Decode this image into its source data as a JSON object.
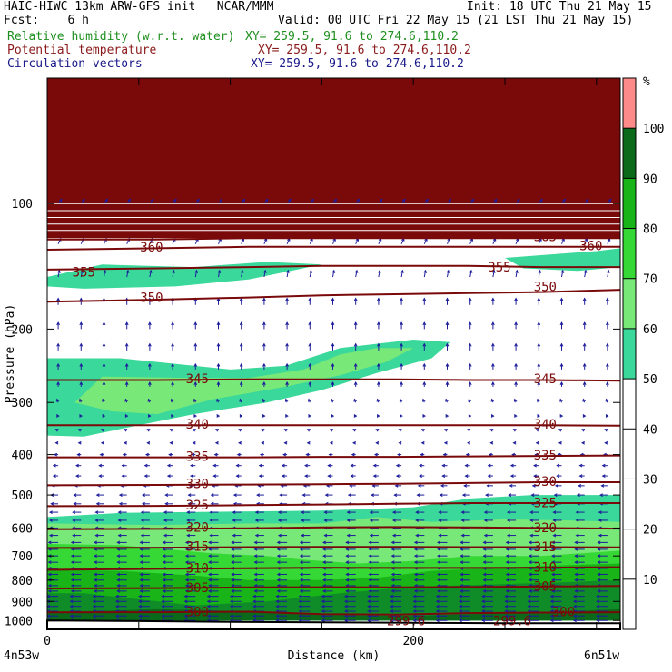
{
  "header": {
    "line1_left": "HAIC-HIWC 13km ARW-GFS init   NCAR/MMM",
    "line1_right": "Init: 18 UTC Thu 21 May 15",
    "line2_left": "Fcst:    6 h",
    "line2_right": "Valid: 00 UTC Fri 22 May 15 (21 LST Thu 21 May 15)",
    "fields": [
      {
        "name": "Relative humidity (w.r.t. water)",
        "xy": "XY= 259.5, 91.6 to 274.6,110.2",
        "color": "#1f8f1f"
      },
      {
        "name": "Potential temperature",
        "xy": "XY= 259.5, 91.6 to 274.6,110.2",
        "color": "#8b1a1a"
      },
      {
        "name": "Circulation vectors",
        "xy": "XY= 259.5, 91.6 to 274.6,110.2",
        "color": "#1a1a8b"
      }
    ]
  },
  "colors": {
    "theta": "#7a0a0a",
    "vectors": "#1c1c9c",
    "rh_levels": [
      "#ffffff",
      "#ffffff",
      "#ffffff",
      "#ffffff",
      "#ffffff",
      "#3ad89a",
      "#78e878",
      "#35d835",
      "#18b418",
      "#0f8c28",
      "#0a6a1a",
      "#ff8a8a"
    ]
  },
  "chart_data": {
    "type": "cross-section",
    "xlabel": "Distance (km)",
    "ylabel": "Pressure (hPa)",
    "xlim": [
      0,
      313
    ],
    "ylim": [
      1050,
      50
    ],
    "y_scale": "log",
    "x_ticks": [
      0,
      200
    ],
    "y_ticks": [
      100,
      200,
      300,
      400,
      500,
      600,
      700,
      800,
      900,
      1000
    ],
    "x_endpoint_labels": [
      "4n53w",
      "6n51w"
    ],
    "colorbar": {
      "unit": "%",
      "ticks": [
        10,
        20,
        30,
        40,
        50,
        60,
        70,
        80,
        90,
        100
      ],
      "bands": [
        {
          "from": 0,
          "to": 50,
          "color": "#ffffff"
        },
        {
          "from": 50,
          "to": 60,
          "color": "#3ad89a"
        },
        {
          "from": 60,
          "to": 70,
          "color": "#78e878"
        },
        {
          "from": 70,
          "to": 80,
          "color": "#35d835"
        },
        {
          "from": 80,
          "to": 90,
          "color": "#18b418"
        },
        {
          "from": 90,
          "to": 100,
          "color": "#0a6a1a"
        },
        {
          "from": 100,
          "to": 110,
          "color": "#ff8a8a"
        }
      ]
    },
    "theta_contours": [
      {
        "label": "300",
        "x": [
          0,
          60,
          110,
          150,
          190,
          230,
          270,
          313
        ],
        "p": [
          956,
          955,
          952,
          965,
          968,
          960,
          957,
          955
        ]
      },
      {
        "label": "305",
        "x": [
          0,
          60,
          110,
          150,
          190,
          230,
          270,
          313
        ],
        "p": [
          838,
          836,
          833,
          832,
          833,
          831,
          829,
          826
        ]
      },
      {
        "label": "310",
        "x": [
          0,
          60,
          110,
          150,
          190,
          230,
          270,
          313
        ],
        "p": [
          756,
          752,
          749,
          747,
          748,
          748,
          747,
          745
        ]
      },
      {
        "label": "315",
        "x": [
          0,
          60,
          110,
          150,
          190,
          230,
          270,
          313
        ],
        "p": [
          670,
          669,
          667,
          666,
          666,
          667,
          667,
          668
        ]
      },
      {
        "label": "320",
        "x": [
          0,
          60,
          110,
          150,
          190,
          230,
          270,
          313
        ],
        "p": [
          604,
          603,
          601,
          598,
          597,
          598,
          600,
          602
        ]
      },
      {
        "label": "325",
        "x": [
          0,
          60,
          110,
          150,
          190,
          230,
          270,
          313
        ],
        "p": [
          532,
          531,
          529,
          527,
          525,
          523,
          523,
          523
        ]
      },
      {
        "label": "330",
        "x": [
          0,
          60,
          110,
          150,
          190,
          230,
          270,
          313
        ],
        "p": [
          474,
          473,
          472,
          471,
          470,
          468,
          466,
          466
        ]
      },
      {
        "label": "335",
        "x": [
          0,
          60,
          110,
          150,
          190,
          230,
          270,
          313
        ],
        "p": [
          406,
          406,
          406,
          405,
          405,
          404,
          403,
          402
        ]
      },
      {
        "label": "340",
        "x": [
          0,
          60,
          110,
          150,
          190,
          230,
          270,
          313
        ],
        "p": [
          340,
          340,
          340,
          340,
          340,
          340,
          340,
          341
        ]
      },
      {
        "label": "345",
        "x": [
          0,
          60,
          110,
          150,
          190,
          230,
          270,
          313
        ],
        "p": [
          265,
          265,
          264,
          264,
          264,
          265,
          265,
          266
        ]
      },
      {
        "label": "350",
        "x": [
          0,
          60,
          110,
          150,
          190,
          230,
          270,
          313
        ],
        "p": [
          172,
          170,
          168,
          166,
          165,
          164,
          163,
          161
        ]
      },
      {
        "label": "355",
        "x": [
          0,
          60,
          110,
          150,
          190,
          230,
          270,
          313
        ],
        "p": [
          144,
          143,
          142,
          141,
          141,
          141,
          142,
          142
        ]
      },
      {
        "label": "360",
        "x": [
          0,
          60,
          110,
          150,
          190,
          230,
          270,
          313
        ],
        "p": [
          129,
          128,
          127,
          127,
          127,
          127,
          127,
          127
        ]
      },
      {
        "label": "365",
        "x": [
          0,
          60,
          110,
          150,
          190,
          230,
          270,
          313
        ],
        "p": [
          122,
          122,
          121,
          121,
          121,
          121,
          121,
          121
        ]
      }
    ],
    "theta_labels": [
      {
        "text": "360",
        "x": 57,
        "p": 127
      },
      {
        "text": "355",
        "x": 20,
        "p": 146
      },
      {
        "text": "350",
        "x": 57,
        "p": 168
      },
      {
        "text": "345",
        "x": 82,
        "p": 263
      },
      {
        "text": "340",
        "x": 82,
        "p": 338
      },
      {
        "text": "335",
        "x": 82,
        "p": 404
      },
      {
        "text": "330",
        "x": 82,
        "p": 470
      },
      {
        "text": "325",
        "x": 82,
        "p": 528
      },
      {
        "text": "320",
        "x": 82,
        "p": 597
      },
      {
        "text": "315",
        "x": 82,
        "p": 664
      },
      {
        "text": "310",
        "x": 82,
        "p": 749
      },
      {
        "text": "305",
        "x": 82,
        "p": 833
      },
      {
        "text": "300",
        "x": 82,
        "p": 952
      },
      {
        "text": "299.6",
        "x": 196,
        "p": 1002
      },
      {
        "text": "365",
        "x": 272,
        "p": 120
      },
      {
        "text": "355",
        "x": 247,
        "p": 142
      },
      {
        "text": "360",
        "x": 297,
        "p": 126
      },
      {
        "text": "350",
        "x": 272,
        "p": 158
      },
      {
        "text": "345",
        "x": 272,
        "p": 263
      },
      {
        "text": "340",
        "x": 272,
        "p": 338
      },
      {
        "text": "335",
        "x": 272,
        "p": 401
      },
      {
        "text": "330",
        "x": 272,
        "p": 464
      },
      {
        "text": "325",
        "x": 272,
        "p": 521
      },
      {
        "text": "320",
        "x": 272,
        "p": 598
      },
      {
        "text": "315",
        "x": 272,
        "p": 665
      },
      {
        "text": "310",
        "x": 272,
        "p": 745
      },
      {
        "text": "305",
        "x": 272,
        "p": 827
      },
      {
        "text": "300",
        "x": 282,
        "p": 952
      },
      {
        "text": "299.6",
        "x": 254,
        "p": 1002
      }
    ],
    "rh_regions": [
      {
        "level": 50,
        "color": "#3ad89a",
        "poly": [
          [
            0,
            1000
          ],
          [
            313,
            1000
          ],
          [
            313,
            500
          ],
          [
            265,
            500
          ],
          [
            230,
            510
          ],
          [
            200,
            535
          ],
          [
            150,
            545
          ],
          [
            100,
            548
          ],
          [
            40,
            552
          ],
          [
            0,
            565
          ]
        ]
      },
      {
        "level": 60,
        "color": "#78e878",
        "poly": [
          [
            0,
            1000
          ],
          [
            313,
            1000
          ],
          [
            313,
            580
          ],
          [
            280,
            575
          ],
          [
            250,
            572
          ],
          [
            210,
            580
          ],
          [
            180,
            565
          ],
          [
            150,
            585
          ],
          [
            110,
            585
          ],
          [
            60,
            590
          ],
          [
            0,
            585
          ]
        ]
      },
      {
        "level": 70,
        "color": "#35d835",
        "poly": [
          [
            0,
            1000
          ],
          [
            313,
            1000
          ],
          [
            313,
            680
          ],
          [
            270,
            700
          ],
          [
            230,
            700
          ],
          [
            200,
            720
          ],
          [
            170,
            730
          ],
          [
            140,
            715
          ],
          [
            120,
            700
          ],
          [
            90,
            690
          ],
          [
            40,
            660
          ],
          [
            0,
            655
          ]
        ]
      },
      {
        "level": 80,
        "color": "#18b418",
        "poly": [
          [
            0,
            1000
          ],
          [
            313,
            1000
          ],
          [
            313,
            730
          ],
          [
            270,
            740
          ],
          [
            210,
            760
          ],
          [
            180,
            790
          ],
          [
            150,
            800
          ],
          [
            110,
            800
          ],
          [
            80,
            780
          ],
          [
            40,
            760
          ],
          [
            0,
            755
          ]
        ]
      },
      {
        "level": 90,
        "color": "#0f8c28",
        "poly": [
          [
            0,
            1000
          ],
          [
            313,
            1000
          ],
          [
            313,
            800
          ],
          [
            280,
            810
          ],
          [
            240,
            820
          ],
          [
            200,
            830
          ],
          [
            160,
            860
          ],
          [
            120,
            900
          ],
          [
            80,
            920
          ],
          [
            20,
            860
          ],
          [
            0,
            860
          ]
        ]
      },
      {
        "level": 100,
        "color": "#0a6a1a",
        "poly": [
          [
            0,
            1000
          ],
          [
            313,
            1000
          ],
          [
            313,
            940
          ],
          [
            250,
            960
          ],
          [
            200,
            975
          ],
          [
            150,
            970
          ],
          [
            110,
            950
          ],
          [
            60,
            940
          ],
          [
            0,
            955
          ]
        ]
      },
      {
        "level": 50,
        "color": "#3ad89a",
        "poly": [
          [
            0,
            235
          ],
          [
            40,
            235
          ],
          [
            100,
            250
          ],
          [
            130,
            245
          ],
          [
            160,
            222
          ],
          [
            200,
            212
          ],
          [
            220,
            215
          ],
          [
            210,
            235
          ],
          [
            180,
            255
          ],
          [
            150,
            280
          ],
          [
            120,
            300
          ],
          [
            80,
            320
          ],
          [
            50,
            340
          ],
          [
            20,
            362
          ],
          [
            0,
            360
          ]
        ]
      },
      {
        "level": 60,
        "color": "#78e878",
        "poly": [
          [
            30,
            260
          ],
          [
            80,
            262
          ],
          [
            110,
            262
          ],
          [
            140,
            250
          ],
          [
            160,
            230
          ],
          [
            180,
            222
          ],
          [
            200,
            222
          ],
          [
            185,
            240
          ],
          [
            160,
            258
          ],
          [
            130,
            275
          ],
          [
            90,
            295
          ],
          [
            60,
            320
          ],
          [
            35,
            315
          ],
          [
            15,
            300
          ]
        ]
      },
      {
        "level": 50,
        "color": "#3ad89a",
        "poly": [
          [
            0,
            150
          ],
          [
            30,
            140
          ],
          [
            80,
            142
          ],
          [
            120,
            138
          ],
          [
            150,
            140
          ],
          [
            110,
            152
          ],
          [
            70,
            158
          ],
          [
            20,
            160
          ],
          [
            0,
            158
          ]
        ]
      },
      {
        "level": 50,
        "color": "#3ad89a",
        "poly": [
          [
            250,
            135
          ],
          [
            300,
            130
          ],
          [
            313,
            128
          ],
          [
            313,
            142
          ],
          [
            290,
            145
          ],
          [
            260,
            143
          ]
        ]
      }
    ],
    "wind_vectors": {
      "x_spacing_km": 12.5,
      "p_levels": [
        1000,
        975,
        950,
        925,
        900,
        875,
        850,
        825,
        800,
        775,
        750,
        725,
        700,
        675,
        650,
        625,
        600,
        575,
        550,
        525,
        500,
        475,
        450,
        425,
        400,
        375,
        350,
        325,
        300,
        275,
        250,
        225,
        200,
        175,
        150,
        125,
        100
      ],
      "u_profile": [
        -9,
        -9,
        -9,
        -9,
        -9,
        -9,
        -8,
        -8,
        -8,
        -8,
        -8,
        -8,
        -8,
        -8,
        -8,
        -7,
        -7,
        -7,
        -7,
        -6,
        -6,
        -5,
        -4,
        -4,
        -3,
        -2,
        -2,
        -1,
        -1,
        0,
        0,
        0,
        0,
        0,
        1,
        2,
        3
      ],
      "w_profile": [
        0,
        0,
        0,
        0,
        0,
        0,
        0,
        0,
        0,
        0,
        0,
        0,
        0,
        0,
        0,
        0,
        0,
        0,
        0,
        0,
        0,
        0,
        0,
        0,
        0,
        0,
        1,
        2,
        3,
        4,
        5,
        6,
        6,
        6,
        6,
        5,
        4
      ]
    },
    "terrain": {
      "x": [
        0,
        50,
        100,
        150,
        200,
        250,
        313
      ],
      "p": [
        1000,
        1003,
        1007,
        1010,
        1013,
        1015,
        1015
      ]
    }
  }
}
